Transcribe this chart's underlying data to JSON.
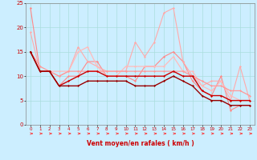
{
  "title": "",
  "xlabel": "Vent moyen/en rafales ( km/h )",
  "ylabel": "",
  "background_color": "#cceeff",
  "grid_color": "#aadddd",
  "xlim": [
    -0.5,
    23.5
  ],
  "ylim": [
    0,
    25
  ],
  "yticks": [
    0,
    5,
    10,
    15,
    20,
    25
  ],
  "xticks": [
    0,
    1,
    2,
    3,
    4,
    5,
    6,
    7,
    8,
    9,
    10,
    11,
    12,
    13,
    14,
    15,
    16,
    17,
    18,
    19,
    20,
    21,
    22,
    23
  ],
  "series": [
    {
      "x": [
        0,
        1,
        2,
        3,
        4,
        5,
        6,
        7,
        8,
        9,
        10,
        11,
        12,
        13,
        14,
        15,
        16,
        17,
        18,
        19,
        20,
        21,
        22,
        23
      ],
      "y": [
        24,
        11,
        11,
        8,
        10,
        10,
        13,
        13,
        10,
        10,
        10,
        9,
        12,
        12,
        14,
        15,
        13,
        9,
        7,
        6,
        10,
        3,
        4,
        4
      ],
      "color": "#ff8888",
      "lw": 0.8,
      "marker": "D",
      "ms": 1.5,
      "zorder": 3
    },
    {
      "x": [
        0,
        1,
        2,
        3,
        4,
        5,
        6,
        7,
        8,
        9,
        10,
        11,
        12,
        13,
        14,
        15,
        16,
        17,
        18,
        19,
        20,
        21,
        22,
        23
      ],
      "y": [
        19,
        11,
        11,
        10,
        11,
        16,
        13,
        12,
        11,
        11,
        11,
        17,
        14,
        17,
        23,
        24,
        13,
        10,
        8,
        9,
        9,
        5,
        12,
        5
      ],
      "color": "#ffaaaa",
      "lw": 0.8,
      "marker": "D",
      "ms": 1.5,
      "zorder": 3
    },
    {
      "x": [
        0,
        1,
        2,
        3,
        4,
        5,
        6,
        7,
        8,
        9,
        10,
        11,
        12,
        13,
        14,
        15,
        16,
        17,
        18,
        19,
        20,
        21,
        22,
        23
      ],
      "y": [
        15,
        11,
        11,
        11,
        11,
        15,
        16,
        12,
        10,
        10,
        12,
        12,
        12,
        12,
        12,
        14,
        11,
        11,
        8,
        7,
        9,
        6,
        5,
        5
      ],
      "color": "#ffbbbb",
      "lw": 0.9,
      "marker": "D",
      "ms": 1.5,
      "zorder": 3
    },
    {
      "x": [
        0,
        1,
        2,
        3,
        4,
        5,
        6,
        7,
        8,
        9,
        10,
        11,
        12,
        13,
        14,
        15,
        16,
        17,
        18,
        19,
        20,
        21,
        22,
        23
      ],
      "y": [
        15,
        12,
        11,
        10,
        11,
        11,
        11,
        11,
        11,
        11,
        11,
        11,
        11,
        11,
        11,
        11,
        11,
        10,
        9,
        8,
        8,
        7,
        7,
        6
      ],
      "color": "#ff9999",
      "lw": 0.9,
      "marker": "D",
      "ms": 1.5,
      "zorder": 3
    },
    {
      "x": [
        0,
        1,
        2,
        3,
        4,
        5,
        6,
        7,
        8,
        9,
        10,
        11,
        12,
        13,
        14,
        15,
        16,
        17,
        18,
        19,
        20,
        21,
        22,
        23
      ],
      "y": [
        15,
        11,
        11,
        8,
        9,
        10,
        11,
        11,
        10,
        10,
        10,
        10,
        10,
        10,
        10,
        11,
        10,
        10,
        7,
        6,
        6,
        5,
        5,
        5
      ],
      "color": "#cc0000",
      "lw": 1.0,
      "marker": "D",
      "ms": 1.5,
      "zorder": 4
    },
    {
      "x": [
        0,
        1,
        2,
        3,
        4,
        5,
        6,
        7,
        8,
        9,
        10,
        11,
        12,
        13,
        14,
        15,
        16,
        17,
        18,
        19,
        20,
        21,
        22,
        23
      ],
      "y": [
        15,
        11,
        11,
        8,
        8,
        8,
        9,
        9,
        9,
        9,
        9,
        8,
        8,
        8,
        9,
        10,
        9,
        8,
        6,
        5,
        5,
        4,
        4,
        4
      ],
      "color": "#990000",
      "lw": 1.0,
      "marker": "D",
      "ms": 1.5,
      "zorder": 4
    }
  ],
  "arrow_color": "#ff3333",
  "xlabel_color": "#cc0000",
  "tick_color": "#cc0000"
}
